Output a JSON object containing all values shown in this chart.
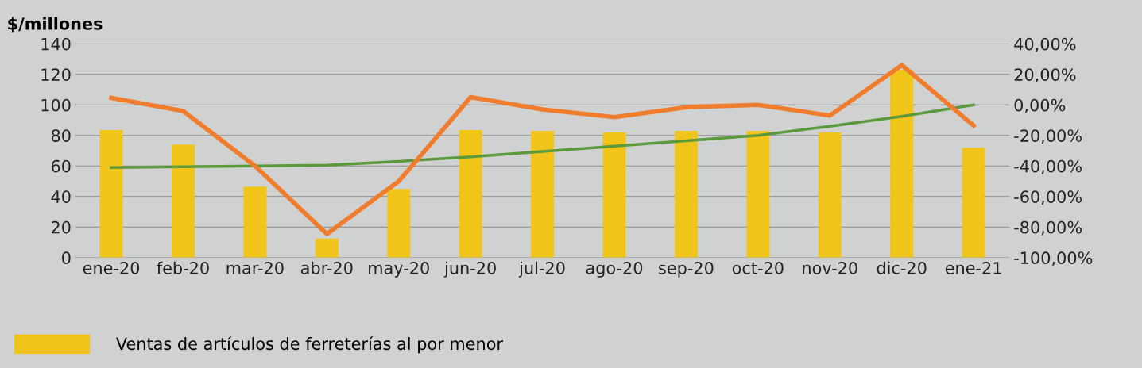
{
  "chart_data": {
    "type": "bar",
    "ylabel": "$/millones",
    "categories": [
      "ene-20",
      "feb-20",
      "mar-20",
      "abr-20",
      "may-20",
      "jun-20",
      "jul-20",
      "ago-20",
      "sep-20",
      "oct-20",
      "nov-20",
      "dic-20",
      "ene-21"
    ],
    "series": [
      {
        "name": "Ventas de artículos de ferreterías al por menor",
        "color": "#f0c419",
        "values": [
          83.5,
          74,
          46.5,
          12.5,
          45,
          83.5,
          83,
          82,
          83,
          83,
          82,
          123,
          72
        ]
      },
      {
        "type": "line",
        "axis": "y2",
        "color": "#ef7d2d",
        "values": [
          4.5,
          -4,
          -40,
          -84.5,
          -50,
          5,
          -3,
          -8,
          -1.5,
          0,
          -7,
          26,
          -13.5
        ]
      },
      {
        "type": "line",
        "color": "#5a9a3c",
        "values": [
          59,
          59.5,
          60,
          60.5,
          63,
          66,
          69.5,
          73,
          76.5,
          80,
          86,
          92.5,
          100
        ]
      }
    ],
    "ylim": [
      0,
      140
    ],
    "yticks": [
      0,
      20,
      40,
      60,
      80,
      100,
      120,
      140
    ],
    "y2lim": [
      -100,
      40
    ],
    "y2ticks": [
      {
        "value": -100,
        "label": "-100,00%"
      },
      {
        "value": -80,
        "label": "-80,00%"
      },
      {
        "value": -60,
        "label": "-60,00%"
      },
      {
        "value": -40,
        "label": "-40,00%"
      },
      {
        "value": -20,
        "label": "-20,00%"
      },
      {
        "value": 0,
        "label": "0,00%"
      },
      {
        "value": 20,
        "label": "20,00%"
      },
      {
        "value": 40,
        "label": "40,00%"
      }
    ],
    "grid": "y",
    "legend": "bottom left"
  }
}
